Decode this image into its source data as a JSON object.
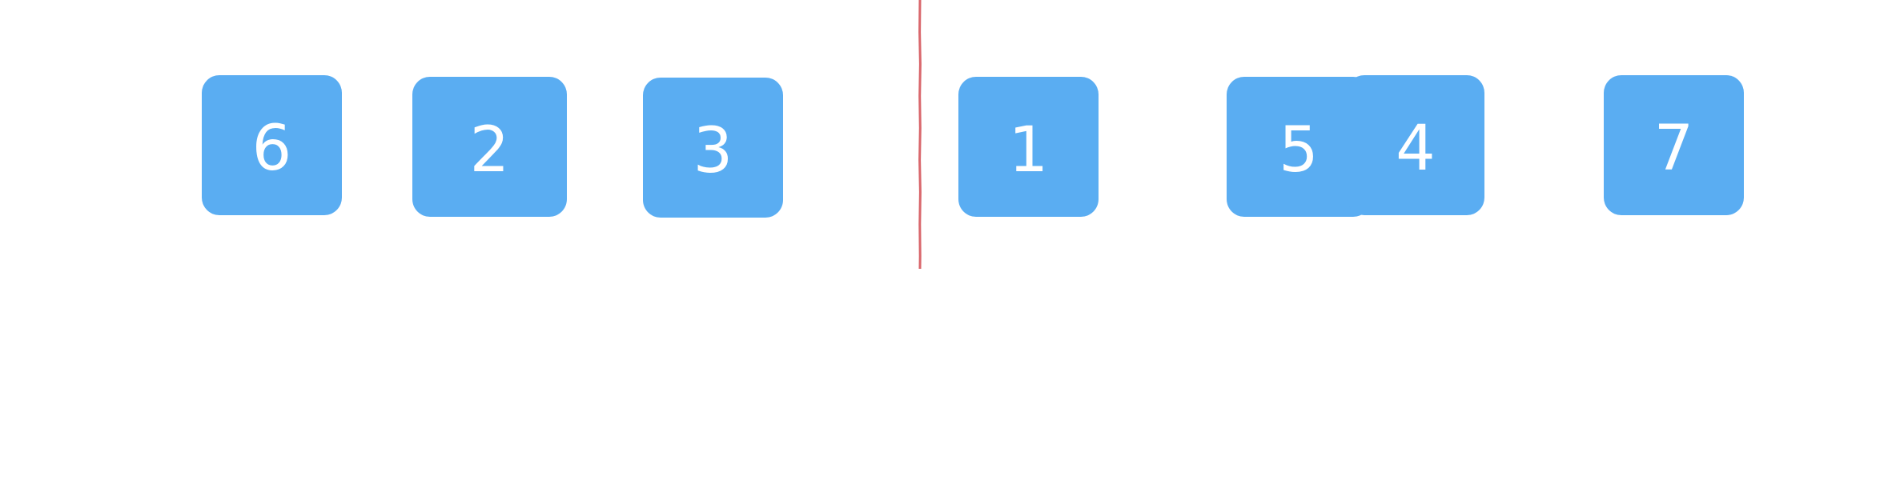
{
  "colors": {
    "tile_fill": "#5aadf2",
    "tile_text": "#ffffff",
    "divider": "#d9676c",
    "background": "#ffffff"
  },
  "left_group": {
    "tiles": [
      {
        "label": "6"
      },
      {
        "label": "2"
      },
      {
        "label": "3"
      }
    ]
  },
  "right_group": {
    "tiles": [
      {
        "label": "1"
      },
      {
        "label": "5"
      },
      {
        "label": "4"
      },
      {
        "label": "7"
      }
    ]
  }
}
